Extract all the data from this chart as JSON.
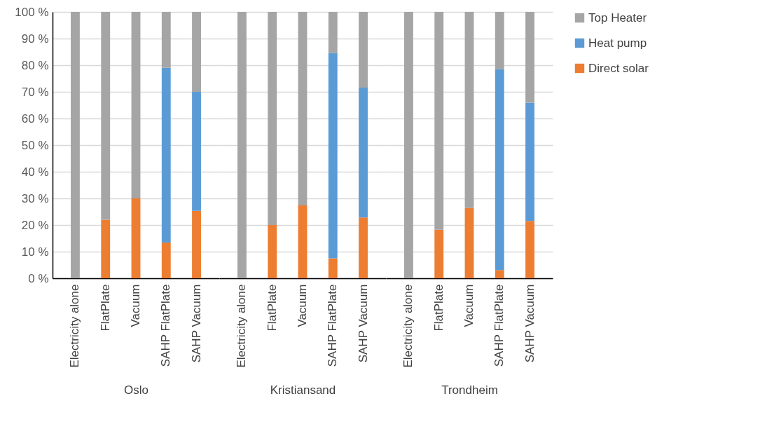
{
  "chart_data": [
    {
      "type": "bar",
      "stacked": true,
      "xlabel": "Oslo",
      "categories": [
        "Electricity alone",
        "FlatPlate",
        "Vacuum",
        "SAHP FlatPlate",
        "SAHP Vacuum"
      ],
      "ylim": [
        0,
        100
      ],
      "yticks": [
        {
          "value": 0,
          "label": "0 %"
        },
        {
          "value": 10,
          "label": "10 %"
        },
        {
          "value": 20,
          "label": "20 %"
        },
        {
          "value": 30,
          "label": "30 %"
        },
        {
          "value": 40,
          "label": "40 %"
        },
        {
          "value": 50,
          "label": "50 %"
        },
        {
          "value": 60,
          "label": "60 %"
        },
        {
          "value": 70,
          "label": "70 %"
        },
        {
          "value": 80,
          "label": "80 %"
        },
        {
          "value": 90,
          "label": "90 %"
        },
        {
          "value": 100,
          "label": "100 %"
        }
      ],
      "grid": "y",
      "legend": "right",
      "series": [
        {
          "name": "Direct solar",
          "color": "#ed7d31",
          "values": [
            0,
            22,
            30,
            13.4,
            25.3
          ]
        },
        {
          "name": "Heat pump",
          "color": "#5b9bd5",
          "values": [
            0,
            0,
            0,
            65.6,
            44.7
          ]
        },
        {
          "name": "Top Heater",
          "color": "#a5a5a5",
          "values": [
            100,
            78,
            70,
            21,
            30
          ]
        }
      ]
    },
    {
      "type": "bar",
      "stacked": true,
      "xlabel": "Kristiansand",
      "categories": [
        "Electricity alone",
        "FlatPlate",
        "Vacuum",
        "SAHP FlatPlate",
        "SAHP Vacuum"
      ],
      "ylim": [
        0,
        100
      ],
      "yticks": [
        0,
        10,
        20,
        30,
        40,
        50,
        60,
        70,
        80,
        90,
        100
      ],
      "grid": "y",
      "tick_labels": "x",
      "series": [
        {
          "color": "#ed7d31",
          "values": [
            0,
            20,
            27.4,
            7.5,
            22.8
          ]
        },
        {
          "color": "#5b9bd5",
          "values": [
            0,
            0,
            0,
            77.1,
            48.8
          ]
        },
        {
          "color": "#a5a5a5",
          "values": [
            100,
            80,
            72.6,
            15.4,
            28.4
          ]
        }
      ]
    },
    {
      "type": "bar",
      "stacked": true,
      "xlabel": "Trondheim",
      "categories": [
        "Electricity alone",
        "FlatPlate",
        "Vacuum",
        "SAHP FlatPlate",
        "SAHP Vacuum"
      ],
      "ylim": [
        0,
        100
      ],
      "yticks": [
        0,
        10,
        20,
        30,
        40,
        50,
        60,
        70,
        80,
        90,
        100
      ],
      "grid": "y",
      "tick_labels": "x",
      "series": [
        {
          "color": "#ed7d31",
          "values": [
            0,
            18.2,
            26.4,
            3.1,
            21.5
          ]
        },
        {
          "color": "#5b9bd5",
          "values": [
            0,
            0,
            0,
            75.4,
            44.4
          ]
        },
        {
          "color": "#a5a5a5",
          "values": [
            100,
            81.8,
            73.6,
            21.5,
            34.1
          ]
        }
      ]
    }
  ]
}
